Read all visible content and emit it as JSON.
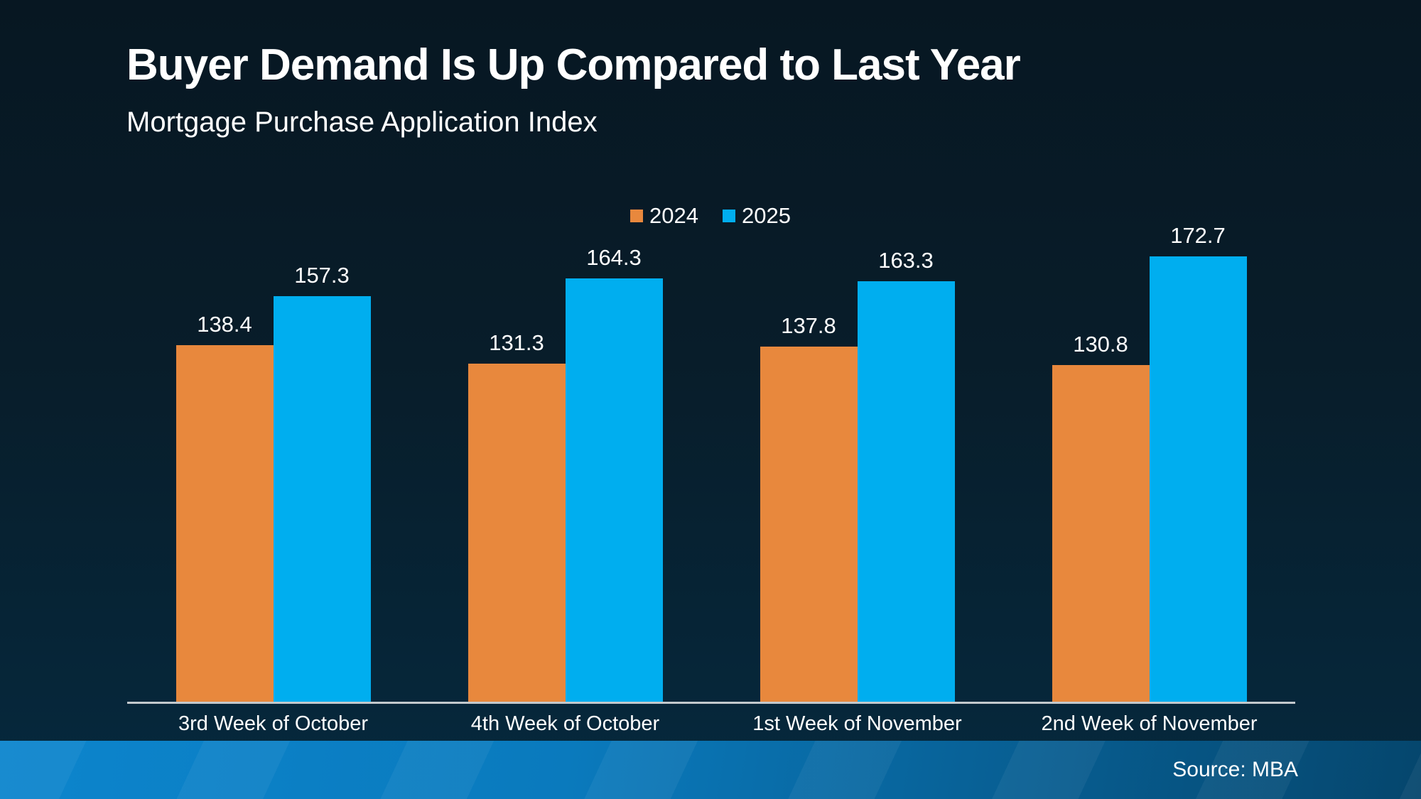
{
  "page": {
    "title": "Buyer Demand Is Up Compared to Last Year",
    "subtitle": "Mortgage Purchase Application Index",
    "source": "Source: MBA"
  },
  "colors": {
    "background_top": "#071722",
    "background_bottom": "#05293e",
    "series_2024": "#e8883d",
    "series_2025": "#00aeef",
    "axis_line": "#c3c9cd",
    "footer_left": "#0c85cd",
    "footer_right": "#05466d",
    "text": "#ffffff"
  },
  "chart_data": {
    "type": "bar",
    "title": "Buyer Demand Is Up Compared to Last Year",
    "subtitle": "Mortgage Purchase Application Index",
    "categories": [
      "3rd Week of October",
      "4th Week of October",
      "1st Week of November",
      "2nd Week of November"
    ],
    "series": [
      {
        "name": "2024",
        "color": "#e8883d",
        "values": [
          138.4,
          131.3,
          137.8,
          130.8
        ]
      },
      {
        "name": "2025",
        "color": "#00aeef",
        "values": [
          157.3,
          164.3,
          163.3,
          172.7
        ]
      }
    ],
    "xlabel": "",
    "ylabel": "",
    "ylim": [
      0,
      180
    ],
    "grid": false,
    "legend_position": "top-center",
    "data_labels": true,
    "source": "Source: MBA"
  }
}
